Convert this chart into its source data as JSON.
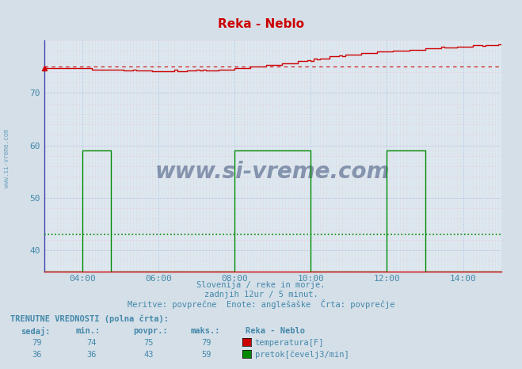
{
  "title": "Reka - Neblo",
  "title_color": "#cc0000",
  "bg_color": "#d4dfe8",
  "plot_bg_color": "#dce8f0",
  "xlim": [
    0,
    144
  ],
  "ylim": [
    36,
    80
  ],
  "yticks": [
    40,
    50,
    60,
    70
  ],
  "xtick_labels": [
    "04:00",
    "06:00",
    "08:00",
    "10:00",
    "12:00",
    "14:00"
  ],
  "xtick_positions": [
    12,
    36,
    60,
    84,
    108,
    132
  ],
  "temp_color": "#cc0000",
  "flow_color": "#008800",
  "temp_avg": 75.0,
  "flow_avg": 43.0,
  "watermark": "www.si-vreme.com",
  "watermark_color": "#1a3060",
  "subtitle1": "Slovenija / reke in morje.",
  "subtitle2": "zadnjih 12ur / 5 minut.",
  "subtitle3": "Meritve: povprečne  Enote: anglešaške  Črta: povprečje",
  "footer_title": "TRENUTNE VREDNOSTI (polna črta):",
  "col_headers": [
    "sedaj:",
    "min.:",
    "povpr.:",
    "maks.:"
  ],
  "temp_row": [
    79,
    74,
    75,
    79
  ],
  "flow_row": [
    36,
    36,
    43,
    59
  ],
  "temp_label": "temperatura[F]",
  "flow_label": "pretok[čevelj3/min]",
  "station": "Reka - Neblo"
}
